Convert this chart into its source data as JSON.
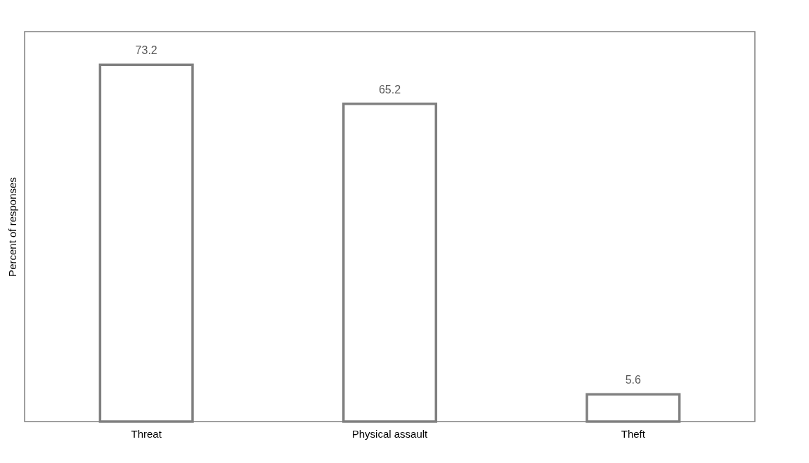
{
  "chart_data": {
    "type": "bar",
    "ylabel": "Percent of responses",
    "categories": [
      "Threat",
      "Physical assault",
      "Theft"
    ],
    "values": [
      73.2,
      65.2,
      5.6
    ],
    "color": "#808080",
    "data_labels": true,
    "grid": false
  }
}
